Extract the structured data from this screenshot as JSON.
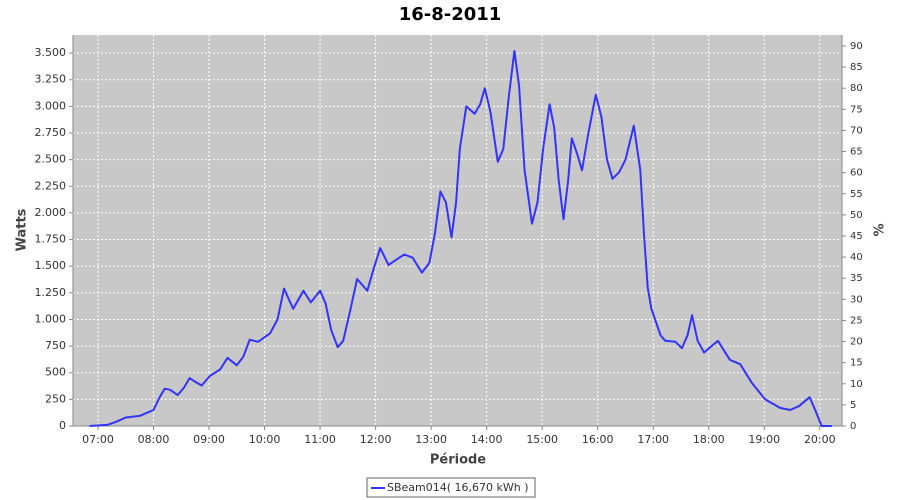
{
  "chart_data": {
    "type": "line",
    "title": "16-8-2011",
    "ylabel": "Watts",
    "y2label": "%",
    "xlabel": "Période",
    "x": [
      "06:51",
      "07:10",
      "07:20",
      "07:30",
      "07:45",
      "08:00",
      "08:06",
      "08:12",
      "08:18",
      "08:26",
      "08:33",
      "08:39",
      "08:46",
      "08:52",
      "09:01",
      "09:12",
      "09:20",
      "09:30",
      "09:37",
      "09:44",
      "09:53",
      "10:06",
      "10:14",
      "10:21",
      "10:31",
      "10:42",
      "10:50",
      "11:00",
      "11:06",
      "11:12",
      "11:19",
      "11:25",
      "11:33",
      "11:40",
      "11:46",
      "11:51",
      "11:58",
      "12:05",
      "12:14",
      "12:22",
      "12:31",
      "12:40",
      "12:50",
      "12:58",
      "13:04",
      "13:10",
      "13:16",
      "13:22",
      "13:27",
      "13:31",
      "13:38",
      "13:47",
      "13:53",
      "13:58",
      "14:04",
      "14:12",
      "14:18",
      "14:24",
      "14:30",
      "14:35",
      "14:41",
      "14:49",
      "14:55",
      "15:01",
      "15:08",
      "15:13",
      "15:18",
      "15:23",
      "15:28",
      "15:32",
      "15:38",
      "15:43",
      "15:50",
      "15:58",
      "16:04",
      "16:10",
      "16:16",
      "16:23",
      "16:30",
      "16:39",
      "16:46",
      "16:50",
      "16:54",
      "16:58",
      "17:02",
      "17:08",
      "17:13",
      "17:24",
      "17:31",
      "17:37",
      "17:42",
      "17:48",
      "17:55",
      "18:03",
      "18:10",
      "18:17",
      "18:23",
      "18:34",
      "18:47",
      "19:01",
      "19:17",
      "19:28",
      "19:38",
      "19:49",
      "19:55",
      "20:02",
      "20:13"
    ],
    "ylim": [
      0,
      3670
    ],
    "y2lim": [
      0,
      92.6
    ],
    "xlim": [
      "06:33",
      "20:24"
    ],
    "xticks": [
      "07:00",
      "08:00",
      "09:00",
      "10:00",
      "11:00",
      "12:00",
      "13:00",
      "14:00",
      "15:00",
      "16:00",
      "17:00",
      "18:00",
      "19:00",
      "20:00"
    ],
    "yticks": [
      0,
      250,
      500,
      750,
      {
        "value": 1000,
        "label": "1.000"
      },
      {
        "value": 1250,
        "label": "1.250"
      },
      {
        "value": 1500,
        "label": "1.500"
      },
      {
        "value": 1750,
        "label": "1.750"
      },
      {
        "value": 2000,
        "label": "2.000"
      },
      {
        "value": 2250,
        "label": "2.250"
      },
      {
        "value": 2500,
        "label": "2.500"
      },
      {
        "value": 2750,
        "label": "2.750"
      },
      {
        "value": 3000,
        "label": "3.000"
      },
      {
        "value": 3250,
        "label": "3.250"
      },
      {
        "value": 3500,
        "label": "3.500"
      }
    ],
    "y2ticks": [
      0,
      5,
      10,
      15,
      20,
      25,
      30,
      35,
      40,
      45,
      50,
      55,
      60,
      65,
      70,
      75,
      80,
      85,
      90
    ],
    "grid": true,
    "series": [
      {
        "name": "SBeam014( 16,670 kWh )",
        "color": "#3333ff",
        "values": [
          0,
          10,
          40,
          80,
          95,
          150,
          260,
          350,
          340,
          290,
          360,
          450,
          410,
          380,
          470,
          530,
          640,
          570,
          650,
          810,
          790,
          870,
          1000,
          1290,
          1100,
          1270,
          1160,
          1270,
          1150,
          900,
          740,
          800,
          1100,
          1380,
          1320,
          1270,
          1480,
          1670,
          1510,
          1560,
          1610,
          1580,
          1440,
          1530,
          1800,
          2200,
          2100,
          1770,
          2100,
          2600,
          3000,
          2930,
          3020,
          3170,
          2950,
          2480,
          2600,
          3100,
          3520,
          3200,
          2400,
          1900,
          2100,
          2600,
          3020,
          2800,
          2300,
          1940,
          2300,
          2700,
          2550,
          2400,
          2750,
          3110,
          2900,
          2500,
          2320,
          2380,
          2500,
          2820,
          2400,
          1800,
          1300,
          1100,
          1000,
          850,
          800,
          790,
          730,
          850,
          1040,
          800,
          690,
          750,
          800,
          700,
          620,
          580,
          400,
          250,
          170,
          150,
          190,
          270,
          150,
          0,
          0
        ]
      }
    ]
  }
}
